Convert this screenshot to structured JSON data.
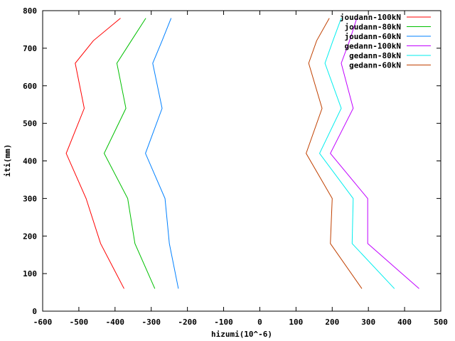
{
  "chart_data": {
    "type": "line",
    "xlabel": "hizumi(10^-6)",
    "ylabel": "iti(mm)",
    "xlim": [
      -600,
      500
    ],
    "ylim": [
      0,
      800
    ],
    "xticks": [
      -600,
      -500,
      -400,
      -300,
      -200,
      -100,
      0,
      100,
      200,
      300,
      400,
      500
    ],
    "yticks": [
      0,
      100,
      200,
      300,
      400,
      500,
      600,
      700,
      800
    ],
    "grid": false,
    "legend_position": "top-right",
    "series": [
      {
        "name": "joudann-100kN",
        "color": "#ff0000",
        "points": [
          [
            -375,
            60
          ],
          [
            -440,
            180
          ],
          [
            -480,
            300
          ],
          [
            -535,
            420
          ],
          [
            -485,
            540
          ],
          [
            -510,
            660
          ],
          [
            -460,
            720
          ],
          [
            -385,
            780
          ]
        ]
      },
      {
        "name": "joudann-80kN",
        "color": "#00c000",
        "points": [
          [
            -290,
            60
          ],
          [
            -345,
            180
          ],
          [
            -365,
            300
          ],
          [
            -430,
            420
          ],
          [
            -370,
            540
          ],
          [
            -395,
            660
          ],
          [
            -355,
            720
          ],
          [
            -315,
            780
          ]
        ]
      },
      {
        "name": "joudann-60kN",
        "color": "#0080ff",
        "points": [
          [
            -225,
            60
          ],
          [
            -250,
            180
          ],
          [
            -262,
            300
          ],
          [
            -316,
            420
          ],
          [
            -270,
            540
          ],
          [
            -296,
            660
          ],
          [
            -270,
            720
          ],
          [
            -245,
            780
          ]
        ]
      },
      {
        "name": "gedann-100kN",
        "color": "#c000ff",
        "points": [
          [
            440,
            60
          ],
          [
            298,
            180
          ],
          [
            298,
            300
          ],
          [
            195,
            420
          ],
          [
            258,
            540
          ],
          [
            225,
            660
          ],
          [
            248,
            720
          ],
          [
            268,
            780
          ]
        ]
      },
      {
        "name": "gedann-80kN",
        "color": "#00eeee",
        "points": [
          [
            372,
            60
          ],
          [
            255,
            180
          ],
          [
            258,
            300
          ],
          [
            165,
            420
          ],
          [
            225,
            540
          ],
          [
            180,
            660
          ],
          [
            202,
            720
          ],
          [
            225,
            780
          ]
        ]
      },
      {
        "name": "gedann-60kN",
        "color": "#c04000",
        "points": [
          [
            282,
            60
          ],
          [
            195,
            180
          ],
          [
            200,
            300
          ],
          [
            128,
            420
          ],
          [
            172,
            540
          ],
          [
            135,
            660
          ],
          [
            157,
            720
          ],
          [
            192,
            780
          ]
        ]
      }
    ]
  }
}
